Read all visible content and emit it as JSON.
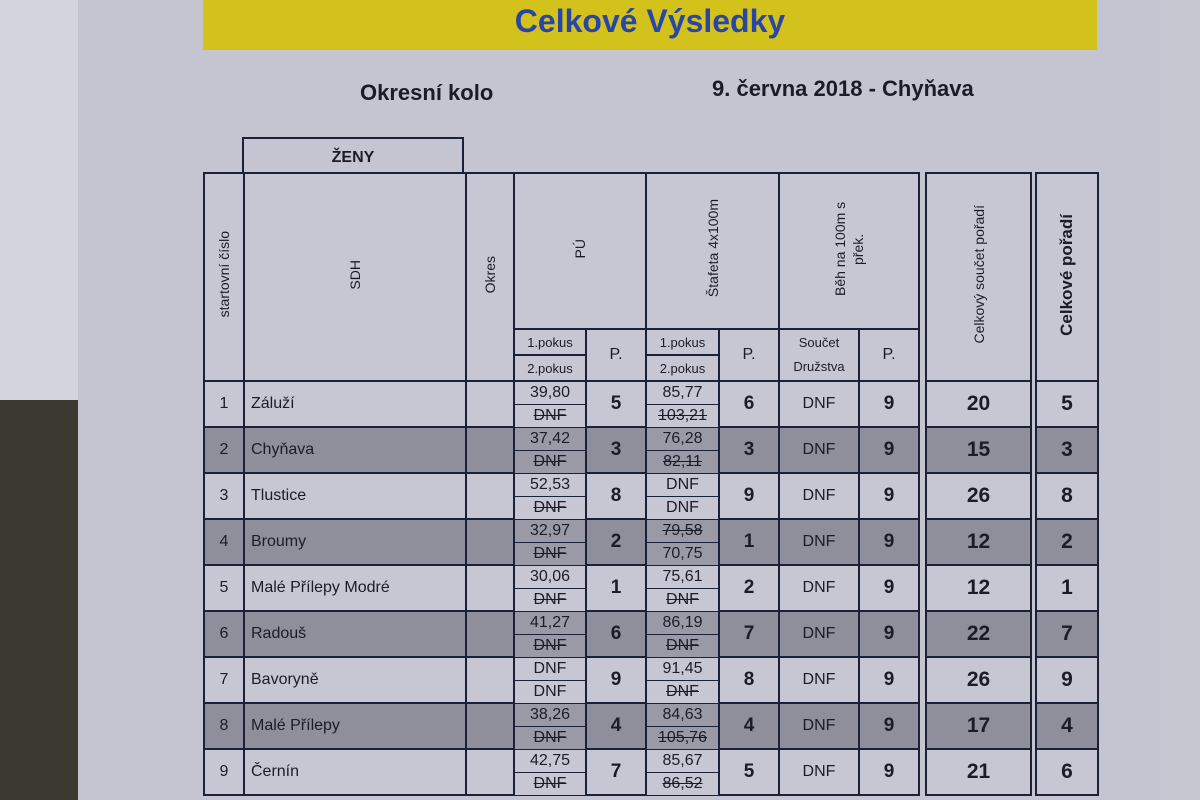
{
  "title": "Celkové Výsledky",
  "round": "Okresní kolo",
  "date_place": "9. června 2018 - Chyňava",
  "category": "ŽENY",
  "colors": {
    "banner": "#d3c21c",
    "title": "#2846a6",
    "shaded_row": "#8f8f9b"
  },
  "headers": {
    "start": "startovní číslo",
    "sdh": "SDH",
    "okres": "Okres",
    "pu": "PÚ",
    "stafeta": "Štafeta 4x100m",
    "beh": "Běh na 100m s přek.",
    "total_sum": "Celkový součet pořadí",
    "total_rank": "Celkové pořadí",
    "attempt1": "1.pokus",
    "attempt2": "2.pokus",
    "p": "P.",
    "soucet": "Součet",
    "druzstva": "Družstva"
  },
  "rows": [
    {
      "no": "1",
      "sdh": "Záluží",
      "okres": "",
      "pu1": "39,80",
      "pu1_void": false,
      "pu2": "DNF",
      "pu2_void": true,
      "pu_p": "5",
      "st1": "85,77",
      "st1_void": false,
      "st2": "103,21",
      "st2_void": true,
      "st_p": "6",
      "beh": "DNF",
      "beh_p": "9",
      "sum": "20",
      "rank": "5"
    },
    {
      "no": "2",
      "sdh": "Chyňava",
      "okres": "",
      "pu1": "37,42",
      "pu1_void": false,
      "pu2": "DNF",
      "pu2_void": true,
      "pu_p": "3",
      "st1": "76,28",
      "st1_void": false,
      "st2": "82,11",
      "st2_void": true,
      "st_p": "3",
      "beh": "DNF",
      "beh_p": "9",
      "sum": "15",
      "rank": "3"
    },
    {
      "no": "3",
      "sdh": "Tlustice",
      "okres": "",
      "pu1": "52,53",
      "pu1_void": false,
      "pu2": "DNF",
      "pu2_void": true,
      "pu_p": "8",
      "st1": "DNF",
      "st1_void": false,
      "st2": "DNF",
      "st2_void": false,
      "st_p": "9",
      "beh": "DNF",
      "beh_p": "9",
      "sum": "26",
      "rank": "8"
    },
    {
      "no": "4",
      "sdh": "Broumy",
      "okres": "",
      "pu1": "32,97",
      "pu1_void": false,
      "pu2": "DNF",
      "pu2_void": true,
      "pu_p": "2",
      "st1": "79,58",
      "st1_void": true,
      "st2": "70,75",
      "st2_void": false,
      "st_p": "1",
      "beh": "DNF",
      "beh_p": "9",
      "sum": "12",
      "rank": "2"
    },
    {
      "no": "5",
      "sdh": "Malé Přílepy Modré",
      "okres": "",
      "pu1": "30,06",
      "pu1_void": false,
      "pu2": "DNF",
      "pu2_void": true,
      "pu_p": "1",
      "st1": "75,61",
      "st1_void": false,
      "st2": "DNF",
      "st2_void": true,
      "st_p": "2",
      "beh": "DNF",
      "beh_p": "9",
      "sum": "12",
      "rank": "1"
    },
    {
      "no": "6",
      "sdh": "Radouš",
      "okres": "",
      "pu1": "41,27",
      "pu1_void": false,
      "pu2": "DNF",
      "pu2_void": true,
      "pu_p": "6",
      "st1": "86,19",
      "st1_void": false,
      "st2": "DNF",
      "st2_void": true,
      "st_p": "7",
      "beh": "DNF",
      "beh_p": "9",
      "sum": "22",
      "rank": "7"
    },
    {
      "no": "7",
      "sdh": "Bavoryně",
      "okres": "",
      "pu1": "DNF",
      "pu1_void": false,
      "pu2": "DNF",
      "pu2_void": false,
      "pu_p": "9",
      "st1": "91,45",
      "st1_void": false,
      "st2": "DNF",
      "st2_void": true,
      "st_p": "8",
      "beh": "DNF",
      "beh_p": "9",
      "sum": "26",
      "rank": "9"
    },
    {
      "no": "8",
      "sdh": "Malé Přílepy",
      "okres": "",
      "pu1": "38,26",
      "pu1_void": false,
      "pu2": "DNF",
      "pu2_void": true,
      "pu_p": "4",
      "st1": "84,63",
      "st1_void": false,
      "st2": "105,76",
      "st2_void": true,
      "st_p": "4",
      "beh": "DNF",
      "beh_p": "9",
      "sum": "17",
      "rank": "4"
    },
    {
      "no": "9",
      "sdh": "Černín",
      "okres": "",
      "pu1": "42,75",
      "pu1_void": false,
      "pu2": "DNF",
      "pu2_void": true,
      "pu_p": "7",
      "st1": "85,67",
      "st1_void": false,
      "st2": "86,52",
      "st2_void": true,
      "st_p": "5",
      "beh": "DNF",
      "beh_p": "9",
      "sum": "21",
      "rank": "6"
    }
  ]
}
